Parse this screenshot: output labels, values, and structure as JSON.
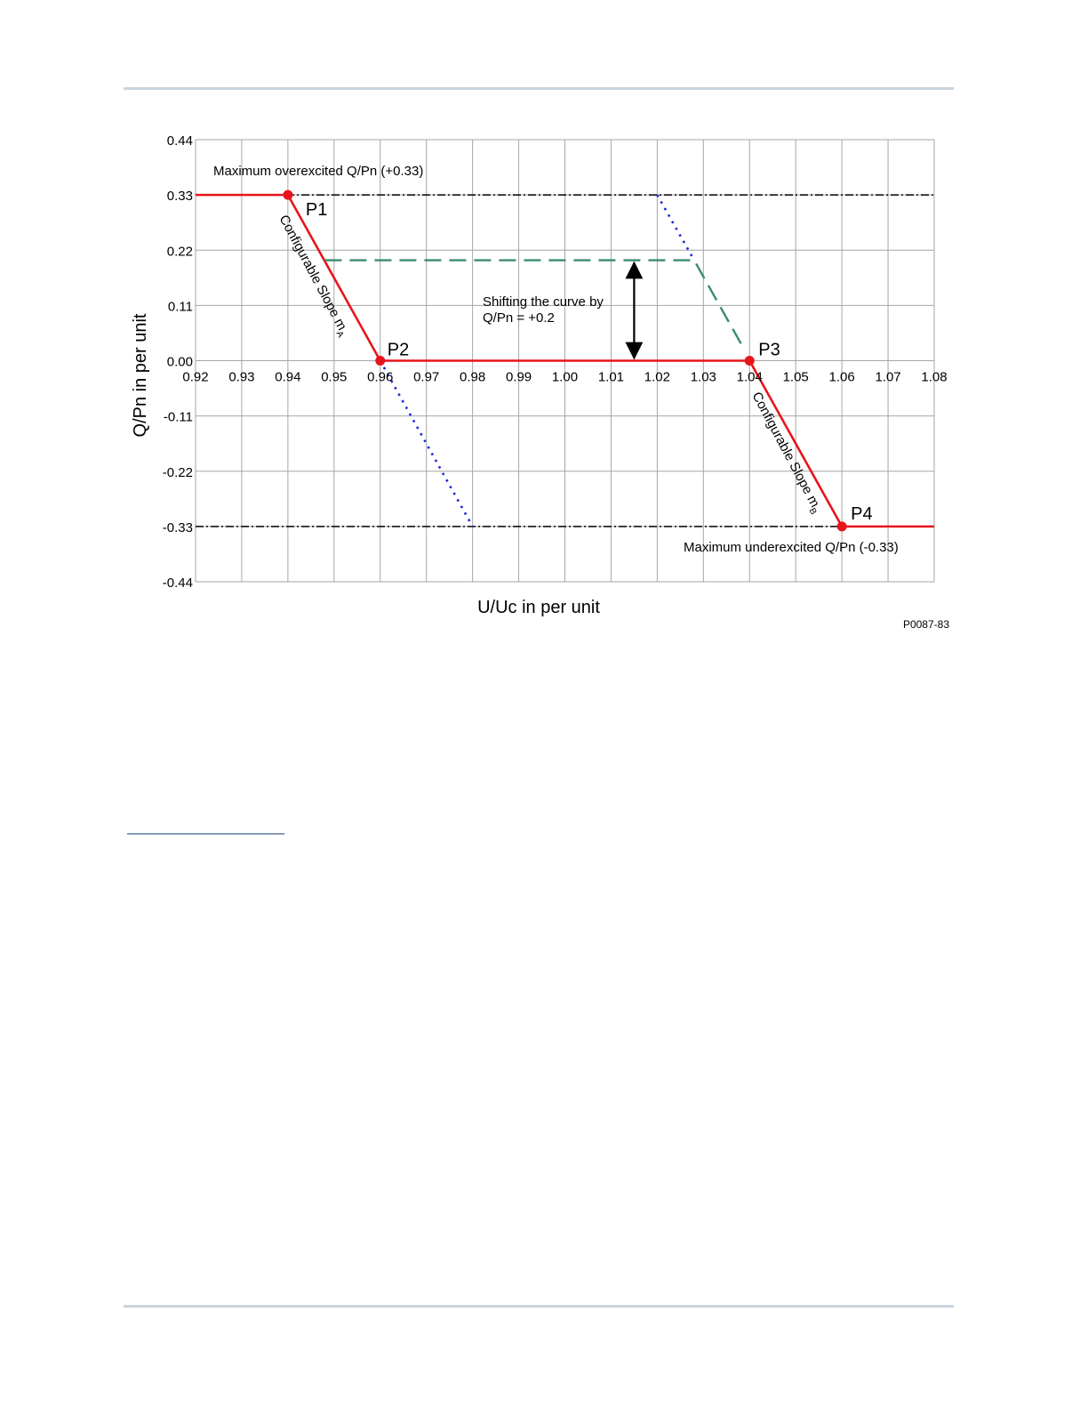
{
  "page": {
    "figure_code": "P0087-83"
  },
  "chart_data": {
    "type": "line",
    "xlabel": "U/Uc in per unit",
    "ylabel": "Q/Pn in per unit",
    "xlim": [
      0.92,
      1.08
    ],
    "ylim": [
      -0.44,
      0.44
    ],
    "x_ticks": [
      0.92,
      0.93,
      0.94,
      0.95,
      0.96,
      0.97,
      0.98,
      0.99,
      1.0,
      1.01,
      1.02,
      1.03,
      1.04,
      1.05,
      1.06,
      1.07,
      1.08
    ],
    "x_tick_labels": [
      "0.92",
      "0.93",
      "0.94",
      "0.95",
      "0.96",
      "0.97",
      "0.98",
      "0.99",
      "1.00",
      "1.01",
      "1.02",
      "1.03",
      "1.04",
      "1.05",
      "1.06",
      "1.07",
      "1.08"
    ],
    "y_ticks": [
      0.44,
      0.33,
      0.22,
      0.11,
      0.0,
      -0.11,
      -0.22,
      -0.33,
      -0.44
    ],
    "y_tick_labels": [
      "0.44",
      "0.33",
      "0.22",
      "0.11",
      "0.00",
      "-0.11",
      "-0.22",
      "-0.33",
      "-0.44"
    ],
    "grid": true,
    "series": [
      {
        "style": "solid",
        "color": "#e8141c",
        "points": [
          [
            0.92,
            0.33
          ],
          [
            0.94,
            0.33
          ],
          [
            0.96,
            0.0
          ],
          [
            1.04,
            0.0
          ],
          [
            1.06,
            -0.33
          ],
          [
            1.08,
            -0.33
          ]
        ]
      },
      {
        "style": "dashed",
        "color": "#3a8c6e",
        "points": [
          [
            0.948,
            0.2
          ],
          [
            1.028,
            0.2
          ],
          [
            1.039,
            0.02
          ]
        ]
      },
      {
        "style": "dotted",
        "color": "#1c2bd6",
        "points": [
          [
            0.96,
            0.0
          ],
          [
            0.98,
            -0.33
          ]
        ]
      },
      {
        "style": "dotted",
        "color": "#1c2bd6",
        "points": [
          [
            1.02,
            0.33
          ],
          [
            1.028,
            0.2
          ]
        ]
      }
    ],
    "limit_lines": [
      {
        "y": 0.33,
        "style": "dash-dot",
        "color": "#000000"
      },
      {
        "y": -0.33,
        "style": "dash-dot",
        "color": "#000000"
      }
    ],
    "points": [
      {
        "label": "P1",
        "x": 0.94,
        "y": 0.33
      },
      {
        "label": "P2",
        "x": 0.96,
        "y": 0.0
      },
      {
        "label": "P3",
        "x": 1.04,
        "y": 0.0
      },
      {
        "label": "P4",
        "x": 1.06,
        "y": -0.33
      }
    ],
    "annotations": {
      "max_over": "Maximum overexcited Q/Pn (+0.33)",
      "max_under": "Maximum underexcited Q/Pn (-0.33)",
      "shift_line1": "Shifting the curve by",
      "shift_line2": "Q/Pn = +0.2",
      "slope_a_text": "Configurable Slope m",
      "slope_a_sub": "A",
      "slope_b_text": "Configurable Slope m",
      "slope_b_sub": "B"
    },
    "shift_arrow": {
      "x": 1.015,
      "y_from": 0.0,
      "y_to": 0.2
    }
  }
}
